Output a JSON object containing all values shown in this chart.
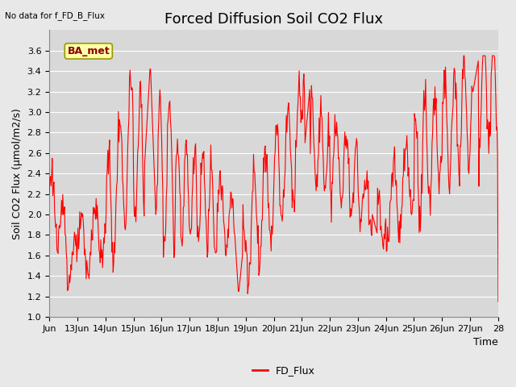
{
  "title": "Forced Diffusion Soil CO2 Flux",
  "no_data_label": "No data for f_FD_B_Flux",
  "ylabel": "Soil CO2 Flux (μmol/m2/s)",
  "xlabel": "Time",
  "legend_label": "FD_Flux",
  "box_label": "BA_met",
  "ylim": [
    1.0,
    3.8
  ],
  "yticks": [
    1.0,
    1.2,
    1.4,
    1.6,
    1.8,
    2.0,
    2.2,
    2.4,
    2.6,
    2.8,
    3.0,
    3.2,
    3.4,
    3.6
  ],
  "xtick_labels": [
    "Jun",
    "13Jun",
    "14Jun",
    "15Jun",
    "16Jun",
    "17Jun",
    "18Jun",
    "19Jun",
    "20Jun",
    "21Jun",
    "22Jun",
    "23Jun",
    "24Jun",
    "25Jun",
    "26Jun",
    "27Jun",
    "28"
  ],
  "line_color": "#FF0000",
  "bg_color": "#E8E8E8",
  "plot_bg": "#D8D8D8",
  "grid_color": "#FFFFFF",
  "title_fontsize": 13,
  "label_fontsize": 9,
  "tick_fontsize": 8,
  "figsize": [
    6.4,
    4.8
  ],
  "dpi": 100
}
